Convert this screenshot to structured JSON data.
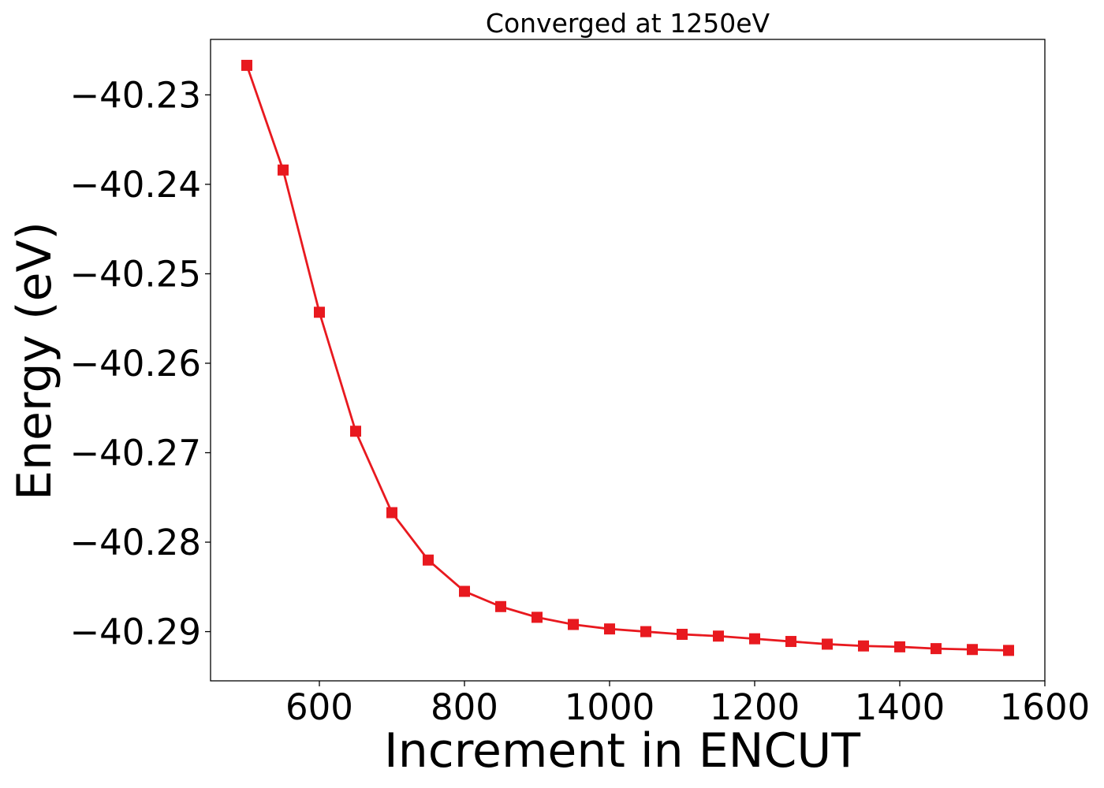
{
  "chart_data": {
    "type": "line",
    "title": "Converged at 1250eV",
    "xlabel": "Increment in ENCUT",
    "ylabel": "Energy (eV)",
    "xlim": [
      450,
      1600
    ],
    "ylim": [
      -40.2955,
      -40.2238
    ],
    "x_ticks": [
      600,
      800,
      1000,
      1200,
      1400,
      1600
    ],
    "y_ticks": [
      -40.23,
      -40.24,
      -40.25,
      -40.26,
      -40.27,
      -40.28,
      -40.29
    ],
    "x_tick_labels": [
      "600",
      "800",
      "1000",
      "1200",
      "1400",
      "1600"
    ],
    "y_tick_labels": [
      "−40.23",
      "−40.24",
      "−40.25",
      "−40.26",
      "−40.27",
      "−40.28",
      "−40.29"
    ],
    "grid": false,
    "marker": "square",
    "series": [
      {
        "color": "#e8191f",
        "x": [
          500,
          550,
          600,
          650,
          700,
          750,
          800,
          850,
          900,
          950,
          1000,
          1050,
          1100,
          1150,
          1200,
          1250,
          1300,
          1350,
          1400,
          1450,
          1500,
          1550
        ],
        "y": [
          -40.2267,
          -40.2384,
          -40.2543,
          -40.2676,
          -40.2767,
          -40.282,
          -40.2855,
          -40.2872,
          -40.2884,
          -40.2892,
          -40.2897,
          -40.29,
          -40.2903,
          -40.2905,
          -40.2908,
          -40.2911,
          -40.2914,
          -40.2916,
          -40.2917,
          -40.2919,
          -40.292,
          -40.2921
        ]
      }
    ]
  }
}
